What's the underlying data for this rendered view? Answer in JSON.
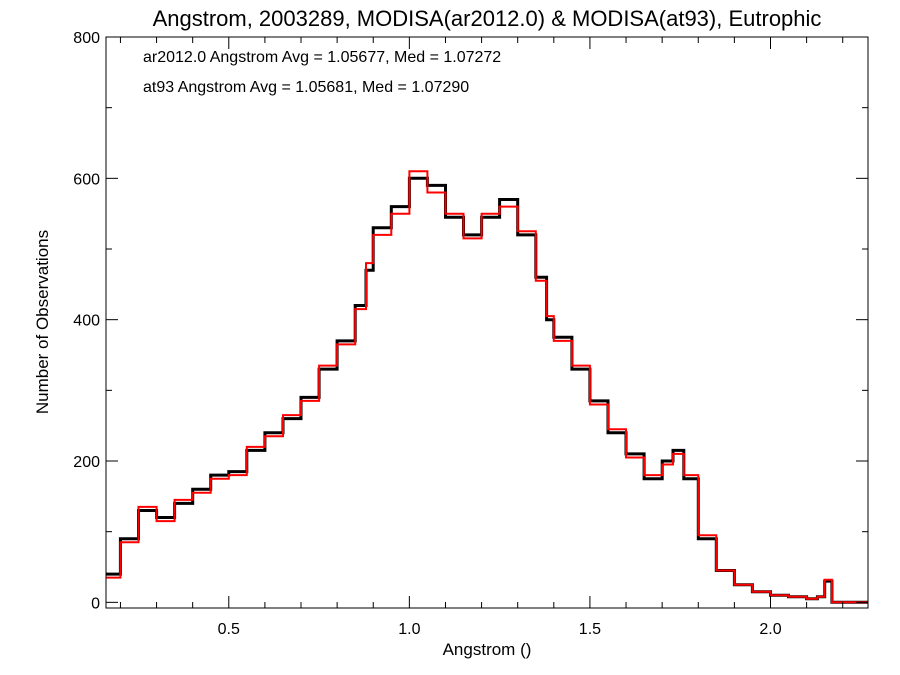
{
  "chart_data": {
    "type": "line",
    "title": "Angstrom, 2003289, MODISA(ar2012.0) & MODISA(at93), Eutrophic",
    "xlabel": "Angstrom ()",
    "ylabel": "Number of Observations",
    "xlim": [
      0.16,
      2.27
    ],
    "ylim": [
      -8,
      800
    ],
    "xticks": [
      0.5,
      1.0,
      1.5,
      2.0
    ],
    "xtick_labels": [
      "0.5",
      "1.0",
      "1.5",
      "2.0"
    ],
    "yticks": [
      0,
      200,
      400,
      600,
      800
    ],
    "ytick_labels": [
      "0",
      "200",
      "400",
      "600",
      "800"
    ],
    "step_style": "histogram",
    "grid": false,
    "series": [
      {
        "name": "ar2012.0",
        "color": "#000000",
        "x": [
          0.16,
          0.2,
          0.25,
          0.3,
          0.35,
          0.4,
          0.45,
          0.5,
          0.55,
          0.6,
          0.65,
          0.7,
          0.75,
          0.8,
          0.85,
          0.88,
          0.9,
          0.95,
          1.0,
          1.05,
          1.1,
          1.15,
          1.2,
          1.25,
          1.3,
          1.35,
          1.38,
          1.4,
          1.45,
          1.5,
          1.55,
          1.6,
          1.65,
          1.7,
          1.73,
          1.76,
          1.8,
          1.85,
          1.9,
          1.95,
          2.0,
          2.05,
          2.1,
          2.13,
          2.15,
          2.17,
          2.27
        ],
        "values": [
          40,
          90,
          130,
          120,
          140,
          160,
          180,
          185,
          215,
          240,
          260,
          290,
          330,
          370,
          420,
          470,
          530,
          560,
          600,
          590,
          545,
          520,
          545,
          570,
          520,
          460,
          400,
          375,
          330,
          285,
          240,
          210,
          175,
          200,
          215,
          175,
          90,
          45,
          25,
          15,
          10,
          8,
          5,
          8,
          30,
          0,
          0
        ]
      },
      {
        "name": "at93",
        "color": "#ff0000",
        "x": [
          0.16,
          0.2,
          0.25,
          0.3,
          0.35,
          0.4,
          0.45,
          0.5,
          0.55,
          0.6,
          0.65,
          0.7,
          0.75,
          0.8,
          0.85,
          0.88,
          0.9,
          0.95,
          1.0,
          1.05,
          1.1,
          1.15,
          1.2,
          1.25,
          1.3,
          1.35,
          1.38,
          1.4,
          1.45,
          1.5,
          1.55,
          1.6,
          1.65,
          1.7,
          1.73,
          1.76,
          1.8,
          1.85,
          1.9,
          1.95,
          2.0,
          2.05,
          2.1,
          2.13,
          2.15,
          2.17,
          2.27
        ],
        "values": [
          35,
          85,
          135,
          115,
          145,
          155,
          175,
          180,
          220,
          235,
          265,
          285,
          335,
          365,
          415,
          480,
          520,
          550,
          610,
          580,
          550,
          515,
          550,
          560,
          525,
          455,
          405,
          370,
          335,
          280,
          245,
          205,
          180,
          195,
          210,
          180,
          95,
          45,
          25,
          15,
          10,
          8,
          5,
          8,
          32,
          0,
          0
        ]
      }
    ],
    "annotations": [
      {
        "text": "ar2012.0 Angstrom Avg = 1.05677, Med = 1.07272",
        "color": "#000000"
      },
      {
        "text": "at93 Angstrom Avg = 1.05681, Med = 1.07290",
        "color": "#ff0000"
      }
    ]
  }
}
